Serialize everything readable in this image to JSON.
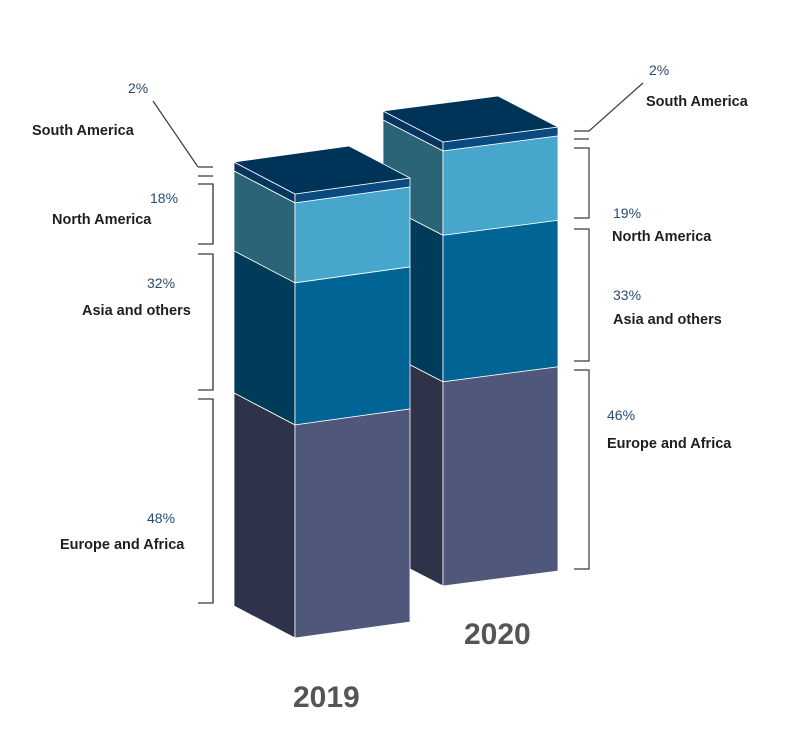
{
  "chart_data": {
    "type": "bar",
    "stacked": true,
    "style": "3d-stacked-column",
    "categories": [
      "2019",
      "2020"
    ],
    "series": [
      {
        "name": "Europe and Africa",
        "values": [
          48,
          46
        ]
      },
      {
        "name": "Asia and others",
        "values": [
          32,
          33
        ]
      },
      {
        "name": "North America",
        "values": [
          18,
          19
        ]
      },
      {
        "name": "South America",
        "values": [
          2,
          2
        ]
      }
    ],
    "labels": {
      "2019": [
        {
          "pct": "48%",
          "name": "Europe and Africa"
        },
        {
          "pct": "32%",
          "name": "Asia and others"
        },
        {
          "pct": "18%",
          "name": "North America"
        },
        {
          "pct": "2%",
          "name": "South America"
        }
      ],
      "2020": [
        {
          "pct": "46%",
          "name": "Europe and Africa"
        },
        {
          "pct": "33%",
          "name": "Asia and others"
        },
        {
          "pct": "19%",
          "name": "North America"
        },
        {
          "pct": "2%",
          "name": "South America"
        }
      ]
    },
    "colors": {
      "Europe and Africa": {
        "front": "#4f587b",
        "side": "#2e3349"
      },
      "Asia and others": {
        "front": "#006494",
        "side": "#003b5a"
      },
      "North America": {
        "front": "#47a6cc",
        "side": "#2b6377"
      },
      "South America": {
        "front": "#0a4a80",
        "side": "#063560"
      },
      "top": "#003358"
    }
  }
}
